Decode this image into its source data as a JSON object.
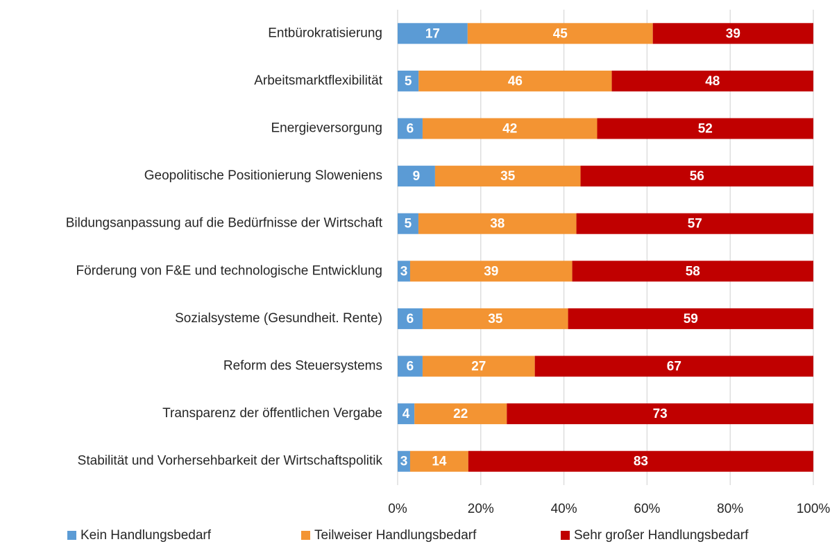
{
  "chart_data": {
    "type": "bar",
    "orientation": "horizontal",
    "stacking": "percent",
    "categories": [
      "Entbürokratisierung",
      "Arbeitsmarktflexibilität",
      "Energieversorgung",
      "Geopolitische Positionierung Sloweniens",
      "Bildungsanpassung auf die Bedürfnisse der Wirtschaft",
      "Förderung von F&E und technologische Entwicklung",
      "Sozialsysteme (Gesundheit. Rente)",
      "Reform des Steuersystems",
      "Transparenz der öffentlichen Vergabe",
      "Stabilität und Vorhersehbarkeit der Wirtschaftspolitik"
    ],
    "series": [
      {
        "name": "Kein Handlungsbedarf",
        "color": "#5b9bd5",
        "values": [
          17,
          5,
          6,
          9,
          5,
          3,
          6,
          6,
          4,
          3
        ]
      },
      {
        "name": "Teilweiser Handlungsbedarf",
        "color": "#f39433",
        "values": [
          45,
          46,
          42,
          35,
          38,
          39,
          35,
          27,
          22,
          14
        ]
      },
      {
        "name": "Sehr großer Handlungsbedarf",
        "color": "#c00000",
        "values": [
          39,
          48,
          52,
          56,
          57,
          58,
          59,
          67,
          73,
          83
        ]
      }
    ],
    "xlim": [
      0,
      100
    ],
    "xticks": [
      {
        "value": 0,
        "label": "0%"
      },
      {
        "value": 20,
        "label": "20%"
      },
      {
        "value": 40,
        "label": "40%"
      },
      {
        "value": 60,
        "label": "60%"
      },
      {
        "value": 80,
        "label": "80%"
      },
      {
        "value": 100,
        "label": "100%"
      }
    ],
    "grid": true,
    "legend": "bottom"
  }
}
